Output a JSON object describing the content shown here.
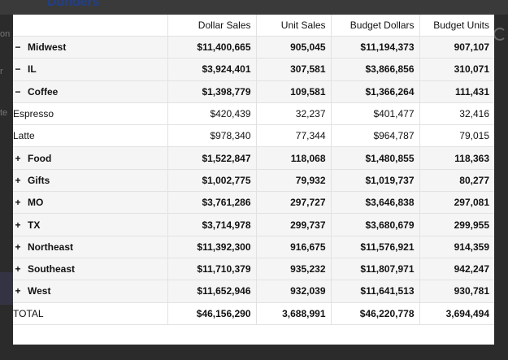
{
  "background": {
    "title": "Dunders"
  },
  "columns": [
    "Dollar Sales",
    "Unit Sales",
    "Budget Dollars",
    "Budget Units"
  ],
  "rows": [
    {
      "label": "Midwest",
      "toggle": "−",
      "values": [
        "$11,400,665",
        "905,045",
        "$11,194,373",
        "907,107"
      ]
    },
    {
      "label": "IL",
      "toggle": "−",
      "values": [
        "$3,924,401",
        "307,581",
        "$3,866,856",
        "310,071"
      ]
    },
    {
      "label": "Coffee",
      "toggle": "−",
      "values": [
        "$1,398,779",
        "109,581",
        "$1,366,264",
        "111,431"
      ]
    },
    {
      "label": "Espresso",
      "toggle": "",
      "values": [
        "$420,439",
        "32,237",
        "$401,477",
        "32,416"
      ]
    },
    {
      "label": "Latte",
      "toggle": "",
      "values": [
        "$978,340",
        "77,344",
        "$964,787",
        "79,015"
      ]
    },
    {
      "label": "Food",
      "toggle": "+",
      "values": [
        "$1,522,847",
        "118,068",
        "$1,480,855",
        "118,363"
      ]
    },
    {
      "label": "Gifts",
      "toggle": "+",
      "values": [
        "$1,002,775",
        "79,932",
        "$1,019,737",
        "80,277"
      ]
    },
    {
      "label": "MO",
      "toggle": "+",
      "values": [
        "$3,761,286",
        "297,727",
        "$3,646,838",
        "297,081"
      ]
    },
    {
      "label": "TX",
      "toggle": "+",
      "values": [
        "$3,714,978",
        "299,737",
        "$3,680,679",
        "299,955"
      ]
    },
    {
      "label": "Northeast",
      "toggle": "+",
      "values": [
        "$11,392,300",
        "916,675",
        "$11,576,921",
        "914,359"
      ]
    },
    {
      "label": "Southeast",
      "toggle": "+",
      "values": [
        "$11,710,379",
        "935,232",
        "$11,807,971",
        "942,247"
      ]
    },
    {
      "label": "West",
      "toggle": "+",
      "values": [
        "$11,652,946",
        "932,039",
        "$11,641,513",
        "930,781"
      ]
    },
    {
      "label": "TOTAL",
      "toggle": "",
      "values": [
        "$46,156,290",
        "3,688,991",
        "$46,220,778",
        "3,694,494"
      ]
    }
  ]
}
